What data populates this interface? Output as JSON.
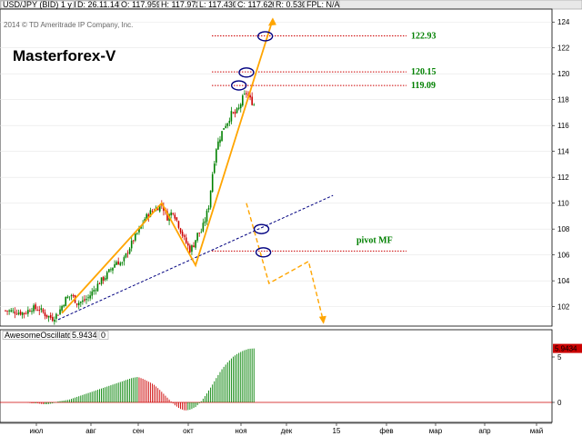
{
  "header": {
    "fields": [
      "USD/JPY (BID) 1 y D",
      "D: 26.11.14",
      "O: 117.959",
      "H: 117.972",
      "L: 117.430",
      "C: 117.620",
      "R: 0.530",
      "FPL: N/A"
    ]
  },
  "copyright": "2014 © TD Ameritrade IP Company, Inc.",
  "brand": "Masterforex-V",
  "colors": {
    "up_candle": "#008000",
    "down_candle": "#cc0000",
    "pattern": "#ffa500",
    "trendline": "#000080",
    "level": "#cc0000",
    "label": "#008000",
    "highlight_bg": "#cc0000"
  },
  "indicator": {
    "name": "AwesomeOscillator",
    "value": "5.9434",
    "flag": "0",
    "current_value_label": "5.9434"
  },
  "chart_data": [
    {
      "type": "candlestick",
      "title": "USD/JPY (BID) 1 y D",
      "y_ticks": [
        102,
        104,
        106,
        108,
        110,
        112,
        114,
        116,
        118,
        120,
        122,
        124
      ],
      "ylim": [
        100.5,
        125
      ],
      "x_ticks": [
        "июл",
        "авг",
        "сен",
        "окт",
        "ноя",
        "дек",
        "15",
        "фев",
        "мар",
        "апр",
        "май"
      ],
      "levels": [
        {
          "value": 122.93,
          "label": "122.93"
        },
        {
          "value": 120.15,
          "label": "120.15"
        },
        {
          "value": 119.09,
          "label": "119.09"
        },
        {
          "value": 106.3,
          "label": "pivot MF"
        }
      ],
      "close_path": [
        [
          0,
          101.7
        ],
        [
          6,
          101.6
        ],
        [
          10,
          101.5
        ],
        [
          14,
          101.9
        ],
        [
          18,
          101.8
        ],
        [
          22,
          101.3
        ],
        [
          25,
          101.1
        ],
        [
          28,
          101.5
        ],
        [
          32,
          102.6
        ],
        [
          35,
          102.9
        ],
        [
          38,
          102.3
        ],
        [
          41,
          102.4
        ],
        [
          44,
          102.7
        ],
        [
          47,
          103.3
        ],
        [
          50,
          103.9
        ],
        [
          53,
          104.3
        ],
        [
          56,
          104.9
        ],
        [
          59,
          105.5
        ],
        [
          62,
          105.3
        ],
        [
          65,
          106.3
        ],
        [
          68,
          107.2
        ],
        [
          71,
          107.9
        ],
        [
          74,
          108.8
        ],
        [
          77,
          109.3
        ],
        [
          80,
          109.6
        ],
        [
          83,
          109.9
        ],
        [
          86,
          108.9
        ],
        [
          89,
          109.4
        ],
        [
          92,
          108.3
        ],
        [
          95,
          107.2
        ],
        [
          98,
          106.4
        ],
        [
          100,
          106.8
        ],
        [
          102,
          107.6
        ],
        [
          104,
          107.8
        ],
        [
          106,
          108.7
        ],
        [
          108,
          109.8
        ],
        [
          110,
          112.3
        ],
        [
          112,
          114.3
        ],
        [
          114,
          115.1
        ],
        [
          116,
          115.9
        ],
        [
          118,
          116.3
        ],
        [
          120,
          116.9
        ],
        [
          122,
          116.9
        ],
        [
          124,
          117.3
        ],
        [
          126,
          118.1
        ],
        [
          128,
          118.5
        ],
        [
          130,
          118.0
        ],
        [
          132,
          117.62
        ]
      ],
      "drawings": {
        "pattern_path": [
          [
            30,
            101.5
          ],
          [
            83,
            110.0
          ],
          [
            101,
            105.2
          ],
          [
            142,
            124.2
          ]
        ],
        "projection_path": [
          [
            128,
            110.0
          ],
          [
            140,
            103.8
          ],
          [
            161,
            105.5
          ],
          [
            169,
            100.8
          ]
        ],
        "trendline": [
          [
            28,
            101.0
          ],
          [
            174,
            110.6
          ]
        ],
        "circles": [
          [
            138,
            122.9
          ],
          [
            128,
            120.1
          ],
          [
            124,
            119.1
          ],
          [
            136,
            108.0
          ],
          [
            137,
            106.2
          ]
        ]
      }
    },
    {
      "type": "bar",
      "title": "AwesomeOscillator",
      "y_ticks": [
        5,
        0
      ],
      "ylim": [
        -2,
        6.8
      ],
      "current_value": 5.9434,
      "bars": [
        0,
        0,
        0,
        0,
        0,
        -0.1,
        -0.1,
        -0.2,
        -0.2,
        -0.1,
        0.1,
        0.2,
        0.3,
        0.5,
        0.7,
        0.9,
        1.1,
        1.3,
        1.5,
        1.7,
        1.9,
        2.1,
        2.3,
        2.5,
        2.7,
        2.8,
        2.6,
        2.3,
        2.0,
        1.5,
        0.9,
        0.3,
        -0.3,
        -0.7,
        -0.9,
        -0.8,
        -0.5,
        0.1,
        0.9,
        1.8,
        2.8,
        3.7,
        4.4,
        5.0,
        5.4,
        5.7,
        5.9,
        5.94
      ]
    }
  ]
}
